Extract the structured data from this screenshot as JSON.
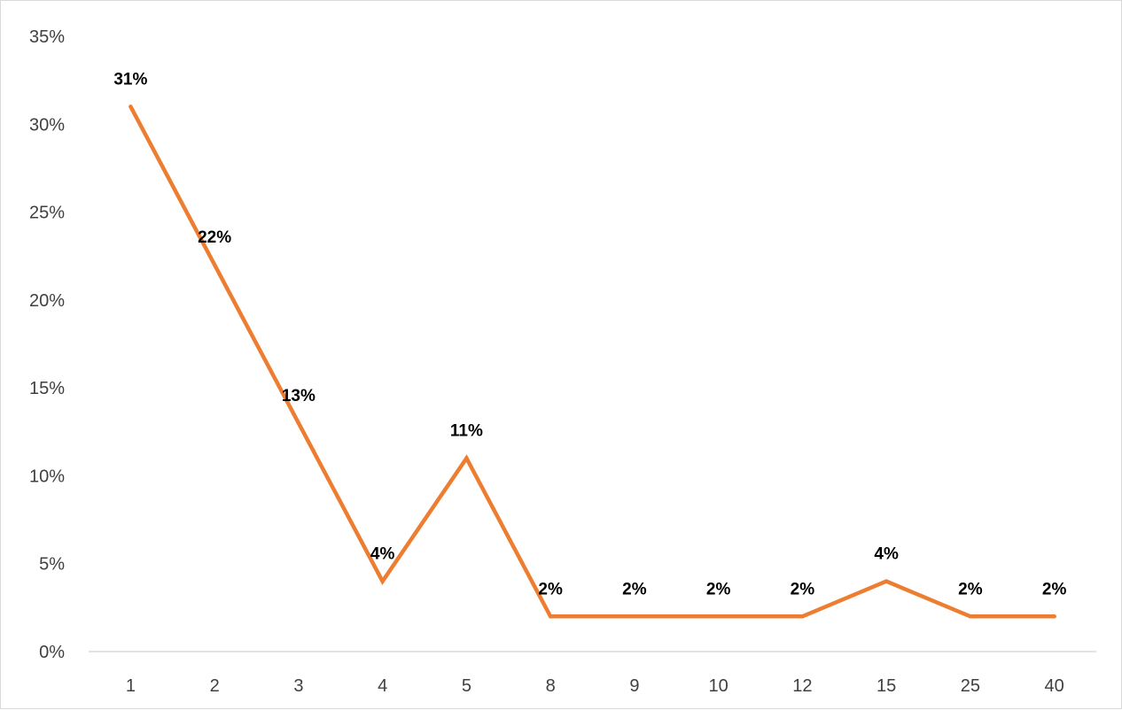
{
  "chart_data": {
    "type": "line",
    "title": "",
    "xlabel": "",
    "ylabel": "",
    "categories": [
      "1",
      "2",
      "3",
      "4",
      "5",
      "8",
      "9",
      "10",
      "12",
      "15",
      "25",
      "40"
    ],
    "series": [
      {
        "values": [
          31,
          22,
          13,
          4,
          11,
          2,
          2,
          2,
          2,
          4,
          2,
          2
        ],
        "labels": [
          "31%",
          "22%",
          "13%",
          "4%",
          "11%",
          "2%",
          "2%",
          "2%",
          "2%",
          "4%",
          "2%",
          "2%"
        ],
        "color": "#ED7D31"
      }
    ],
    "ylim": [
      0,
      35
    ],
    "yticks": [
      0,
      5,
      10,
      15,
      20,
      25,
      30,
      35
    ],
    "ytick_labels": [
      "0%",
      "5%",
      "10%",
      "15%",
      "20%",
      "25%",
      "30%",
      "35%"
    ],
    "grid": false,
    "legend": "none",
    "axis_color": "#d9d9d9",
    "text_color": "#404040"
  }
}
